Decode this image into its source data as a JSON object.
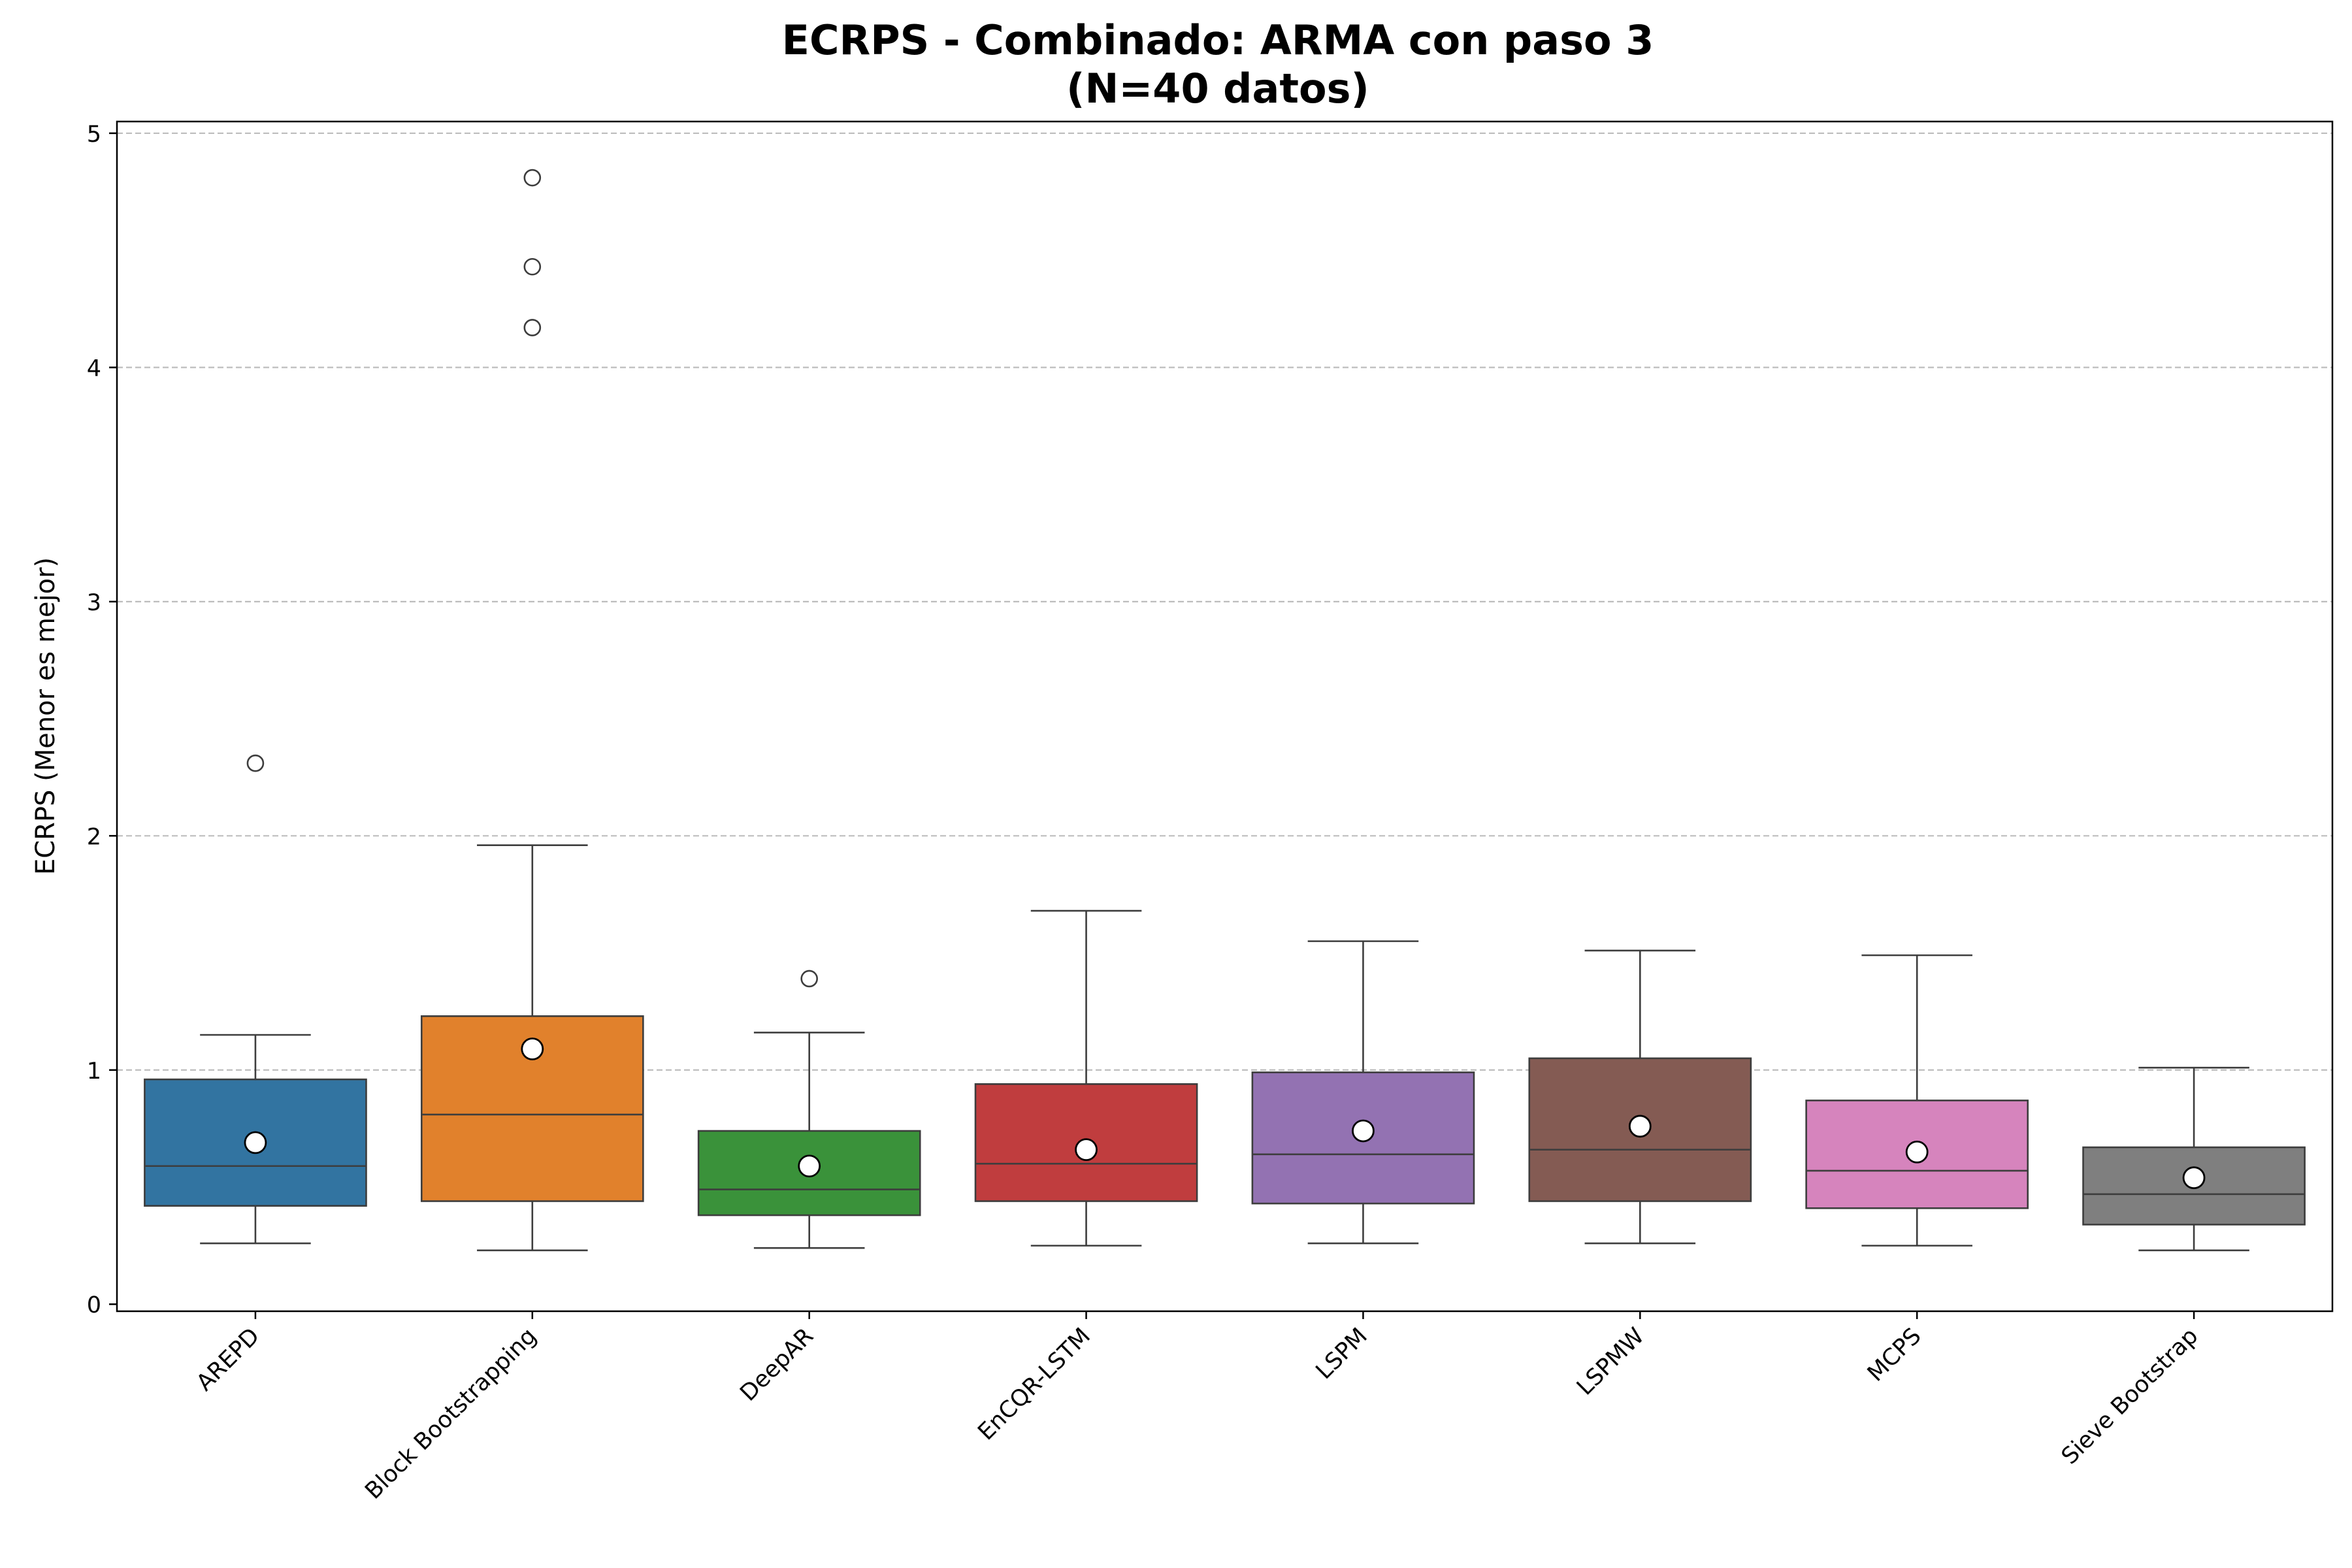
{
  "chart_data": {
    "type": "box",
    "title_line1": "ECRPS - Combinado: ARMA con paso 3",
    "title_line2": "(N=40 datos)",
    "xlabel": "",
    "ylabel": "ECRPS (Menor es mejor)",
    "ylim": [
      -0.03,
      5.05
    ],
    "yticks": [
      0,
      1,
      2,
      3,
      4,
      5
    ],
    "grid": "y-dashed",
    "categories": [
      "AREPD",
      "Block Bootstrapping",
      "DeepAR",
      "EnCQR-LSTM",
      "LSPM",
      "LSPMW",
      "MCPS",
      "Sieve Bootstrap"
    ],
    "boxes": [
      {
        "name": "AREPD",
        "color": "#3274a1",
        "whislo": 0.26,
        "q1": 0.42,
        "median": 0.59,
        "q3": 0.96,
        "whishi": 1.15,
        "mean": 0.69,
        "fliers": [
          2.31
        ]
      },
      {
        "name": "Block Bootstrapping",
        "color": "#e1812c",
        "whislo": 0.23,
        "q1": 0.44,
        "median": 0.81,
        "q3": 1.23,
        "whishi": 1.96,
        "mean": 1.09,
        "fliers": [
          4.81,
          4.43,
          4.17
        ]
      },
      {
        "name": "DeepAR",
        "color": "#3a923a",
        "whislo": 0.24,
        "q1": 0.38,
        "median": 0.49,
        "q3": 0.74,
        "whishi": 1.16,
        "mean": 0.59,
        "fliers": [
          1.39
        ]
      },
      {
        "name": "EnCQR-LSTM",
        "color": "#c03d3e",
        "whislo": 0.25,
        "q1": 0.44,
        "median": 0.6,
        "q3": 0.94,
        "whishi": 1.68,
        "mean": 0.66,
        "fliers": []
      },
      {
        "name": "LSPM",
        "color": "#9372b2",
        "whislo": 0.26,
        "q1": 0.43,
        "median": 0.64,
        "q3": 0.99,
        "whishi": 1.55,
        "mean": 0.74,
        "fliers": []
      },
      {
        "name": "LSPMW",
        "color": "#845b53",
        "whislo": 0.26,
        "q1": 0.44,
        "median": 0.66,
        "q3": 1.05,
        "whishi": 1.51,
        "mean": 0.76,
        "fliers": []
      },
      {
        "name": "MCPS",
        "color": "#d684bd",
        "whislo": 0.25,
        "q1": 0.41,
        "median": 0.57,
        "q3": 0.87,
        "whishi": 1.49,
        "mean": 0.65,
        "fliers": []
      },
      {
        "name": "Sieve Bootstrap",
        "color": "#7f7f7f",
        "whislo": 0.23,
        "q1": 0.34,
        "median": 0.47,
        "q3": 0.67,
        "whishi": 1.01,
        "mean": 0.54,
        "fliers": []
      }
    ]
  }
}
